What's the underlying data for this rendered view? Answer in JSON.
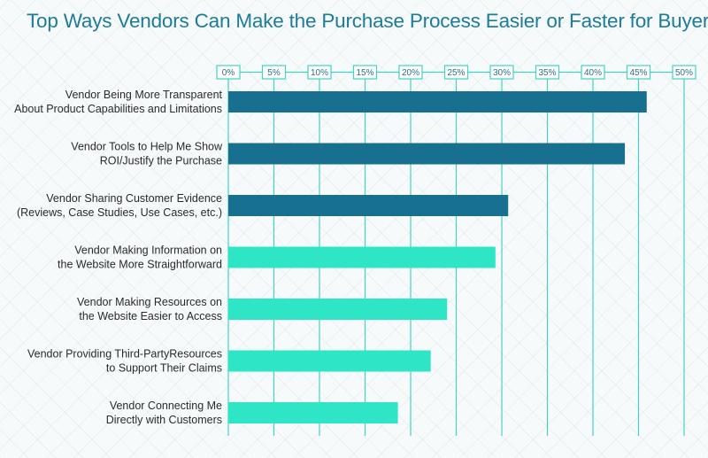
{
  "chart_data": {
    "type": "bar",
    "orientation": "horizontal",
    "title": "Top Ways Vendors Can Make the Purchase Process Easier or Faster for Buyers",
    "xlabel": "",
    "ylabel": "",
    "xlim": [
      0,
      50
    ],
    "ticks": [
      "0%",
      "5%",
      "10%",
      "15%",
      "20%",
      "25%",
      "30%",
      "35%",
      "40%",
      "45%",
      "50%"
    ],
    "grid": true,
    "categories": [
      [
        "Vendor Being More Transparent",
        "About Product Capabilities and Limitations"
      ],
      [
        "Vendor Tools to Help Me Show",
        "ROI/Justify the Purchase"
      ],
      [
        "Vendor Sharing Customer Evidence",
        "(Reviews, Case Studies, Use Cases, etc.)"
      ],
      [
        "Vendor Making Information on",
        "the Website More Straightforward"
      ],
      [
        "Vendor Making Resources on",
        "the Website Easier to Access"
      ],
      [
        "Vendor Providing Third-PartyResources",
        "to Support Their Claims"
      ],
      [
        "Vendor Connecting Me",
        "Directly with Customers"
      ]
    ],
    "values": [
      45.9,
      43.5,
      30.7,
      29.3,
      24.0,
      22.2,
      18.6
    ],
    "colors": [
      "#17708f",
      "#17708f",
      "#17708f",
      "#2ee6c6",
      "#2ee6c6",
      "#2ee6c6",
      "#2ee6c6"
    ],
    "grid_color": "#43d3c0",
    "tick_color": "#2a6e8a"
  }
}
